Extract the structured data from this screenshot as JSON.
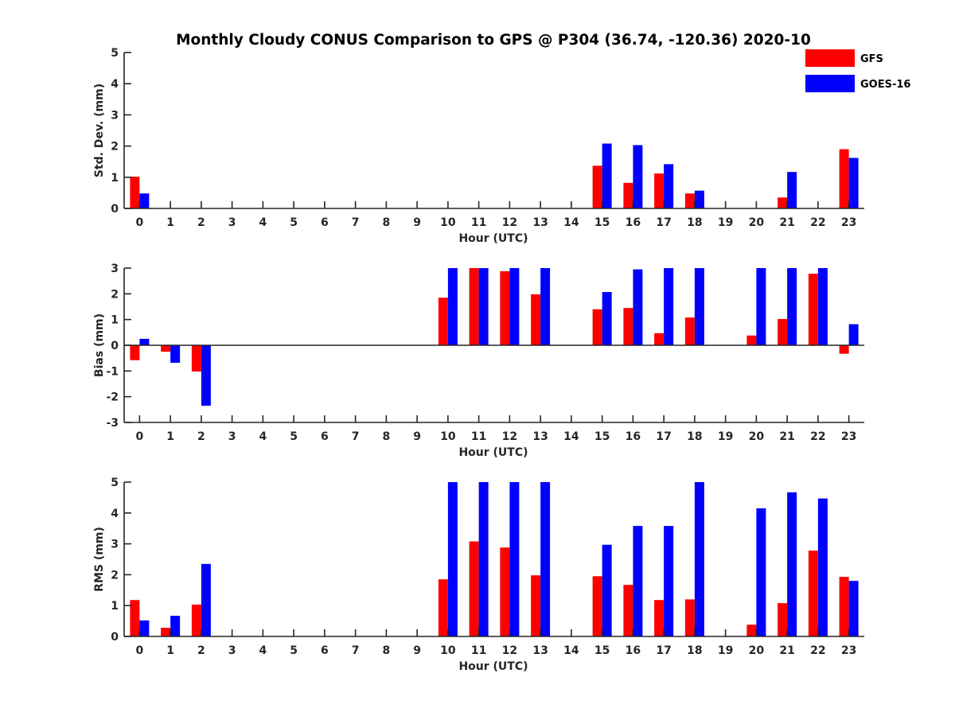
{
  "title": "Monthly Cloudy CONUS Comparison to GPS @ P304 (36.74, -120.36) 2020-10",
  "legend": {
    "placement": "top-right",
    "entries": [
      {
        "label": "GFS",
        "color": "#ff0000"
      },
      {
        "label": "GOES-16",
        "color": "#0000ff"
      }
    ]
  },
  "chart_data": [
    {
      "type": "bar",
      "ylabel": "Std. Dev. (mm)",
      "xlabel": "Hour (UTC)",
      "ylim": [
        0,
        5
      ],
      "yticks": [
        "0",
        "1",
        "2",
        "3",
        "4",
        "5"
      ],
      "categories": [
        "0",
        "1",
        "2",
        "3",
        "4",
        "5",
        "6",
        "7",
        "8",
        "9",
        "10",
        "11",
        "12",
        "13",
        "14",
        "15",
        "16",
        "17",
        "18",
        "19",
        "20",
        "21",
        "22",
        "23"
      ],
      "series": [
        {
          "name": "GFS",
          "color": "#ff0000",
          "values": [
            1.02,
            0,
            0,
            0,
            0,
            0,
            0,
            0,
            0,
            0,
            0,
            0,
            0,
            0,
            0,
            1.37,
            0.82,
            1.12,
            0.48,
            0,
            0,
            0.35,
            0,
            1.9
          ]
        },
        {
          "name": "GOES-16",
          "color": "#0000ff",
          "values": [
            0.48,
            0,
            0,
            0,
            0,
            0,
            0,
            0,
            0,
            0,
            0,
            0,
            0,
            0,
            0,
            2.08,
            2.03,
            1.42,
            0.57,
            0,
            0,
            1.17,
            0,
            1.62
          ]
        }
      ]
    },
    {
      "type": "bar",
      "ylabel": "Bias (mm)",
      "xlabel": "Hour (UTC)",
      "ylim": [
        -3,
        3
      ],
      "yticks": [
        "-3",
        "-2",
        "-1",
        "0",
        "1",
        "2",
        "3"
      ],
      "categories": [
        "0",
        "1",
        "2",
        "3",
        "4",
        "5",
        "6",
        "7",
        "8",
        "9",
        "10",
        "11",
        "12",
        "13",
        "14",
        "15",
        "16",
        "17",
        "18",
        "19",
        "20",
        "21",
        "22",
        "23"
      ],
      "series": [
        {
          "name": "GFS",
          "color": "#ff0000",
          "values": [
            -0.58,
            -0.25,
            -1.02,
            0,
            0,
            0,
            0,
            0,
            0,
            0,
            1.85,
            3.0,
            2.88,
            1.98,
            0,
            1.4,
            1.45,
            0.47,
            1.08,
            0,
            0.38,
            1.02,
            2.78,
            -0.33
          ]
        },
        {
          "name": "GOES-16",
          "color": "#0000ff",
          "values": [
            0.25,
            -0.68,
            -2.35,
            0,
            0,
            0,
            0,
            0,
            0,
            0,
            3.0,
            3.0,
            3.0,
            3.0,
            0,
            2.07,
            2.95,
            3.0,
            3.0,
            0,
            3.0,
            3.0,
            3.0,
            0.82
          ]
        }
      ]
    },
    {
      "type": "bar",
      "ylabel": "RMS (mm)",
      "xlabel": "Hour (UTC)",
      "ylim": [
        0,
        5
      ],
      "yticks": [
        "0",
        "1",
        "2",
        "3",
        "4",
        "5"
      ],
      "categories": [
        "0",
        "1",
        "2",
        "3",
        "4",
        "5",
        "6",
        "7",
        "8",
        "9",
        "10",
        "11",
        "12",
        "13",
        "14",
        "15",
        "16",
        "17",
        "18",
        "19",
        "20",
        "21",
        "22",
        "23"
      ],
      "series": [
        {
          "name": "GFS",
          "color": "#ff0000",
          "values": [
            1.18,
            0.28,
            1.03,
            0,
            0,
            0,
            0,
            0,
            0,
            0,
            1.85,
            3.08,
            2.88,
            1.98,
            0,
            1.95,
            1.67,
            1.18,
            1.2,
            0,
            0.38,
            1.08,
            2.78,
            1.93
          ]
        },
        {
          "name": "GOES-16",
          "color": "#0000ff",
          "values": [
            0.52,
            0.67,
            2.35,
            0,
            0,
            0,
            0,
            0,
            0,
            0,
            5.0,
            5.0,
            5.0,
            5.0,
            0,
            2.97,
            3.58,
            3.58,
            5.0,
            0,
            4.15,
            4.67,
            4.47,
            1.8
          ]
        }
      ]
    }
  ]
}
